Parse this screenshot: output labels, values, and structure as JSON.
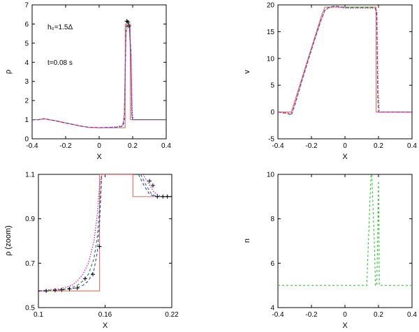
{
  "colors": {
    "exact": "#e8766f",
    "blue": "#3b3bdc",
    "green_dark": "#1a8a2a",
    "magenta": "#e000e0",
    "green_light": "#22cc22",
    "black": "#000000"
  },
  "chart_data": [
    {
      "type": "line",
      "xlabel": "X",
      "ylabel": "ρ",
      "xlim": [
        -0.4,
        0.4
      ],
      "ylim": [
        0,
        7
      ],
      "xticks": [
        "-0.4",
        "-0.2",
        "0",
        "0.2",
        "0.4"
      ],
      "yticks": [
        "0",
        "1",
        "2",
        "3",
        "4",
        "5",
        "6",
        "7"
      ],
      "annotations": [
        "h₀=1.5Δ",
        "t=0.08 s"
      ],
      "series": [
        {
          "style": "exact-red",
          "x": [
            -0.4,
            -0.36,
            -0.34,
            -0.32,
            -0.3,
            -0.26,
            -0.22,
            -0.18,
            -0.14,
            -0.1,
            -0.06,
            0.0,
            0.05,
            0.1,
            0.14,
            0.15,
            0.155,
            0.156,
            0.185,
            0.186,
            0.4
          ],
          "y": [
            1.0,
            1.0,
            1.03,
            1.04,
            1.0,
            0.95,
            0.87,
            0.8,
            0.72,
            0.65,
            0.6,
            0.58,
            0.58,
            0.58,
            0.58,
            0.58,
            0.58,
            6.0,
            6.0,
            1.0,
            1.0
          ]
        },
        {
          "style": "blue-dash",
          "x": [
            -0.4,
            -0.36,
            -0.33,
            -0.3,
            -0.26,
            -0.22,
            -0.18,
            -0.14,
            -0.1,
            -0.06,
            0.0,
            0.1,
            0.14,
            0.15,
            0.16,
            0.17,
            0.18,
            0.19,
            0.195,
            0.2,
            0.4
          ],
          "y": [
            1.0,
            1.0,
            1.05,
            1.0,
            0.94,
            0.86,
            0.79,
            0.72,
            0.65,
            0.6,
            0.58,
            0.6,
            0.65,
            0.9,
            5.6,
            6.0,
            5.9,
            4.5,
            1.2,
            1.0,
            1.0
          ]
        },
        {
          "style": "green-dash",
          "x": [
            -0.4,
            -0.36,
            -0.33,
            -0.3,
            -0.26,
            -0.22,
            -0.18,
            -0.14,
            -0.1,
            -0.06,
            0.0,
            0.1,
            0.14,
            0.15,
            0.16,
            0.17,
            0.18,
            0.19,
            0.196,
            0.2,
            0.4
          ],
          "y": [
            1.0,
            1.0,
            1.05,
            1.0,
            0.94,
            0.86,
            0.79,
            0.72,
            0.65,
            0.6,
            0.58,
            0.6,
            0.66,
            1.1,
            5.8,
            6.2,
            5.9,
            4.2,
            1.1,
            1.0,
            1.0
          ]
        },
        {
          "style": "magenta-dot",
          "x": [
            -0.4,
            -0.36,
            -0.33,
            -0.3,
            -0.26,
            -0.22,
            -0.18,
            -0.14,
            -0.1,
            -0.06,
            0.0,
            0.1,
            0.14,
            0.15,
            0.16,
            0.17,
            0.18,
            0.19,
            0.198,
            0.205,
            0.4
          ],
          "y": [
            1.0,
            1.0,
            1.05,
            1.0,
            0.94,
            0.86,
            0.79,
            0.72,
            0.65,
            0.6,
            0.58,
            0.62,
            0.7,
            1.3,
            5.5,
            5.9,
            5.8,
            4.0,
            1.3,
            1.0,
            1.0
          ]
        }
      ],
      "markers": {
        "x": [
          0.165,
          0.172,
          0.178
        ],
        "y": [
          6.15,
          6.1,
          5.9
        ]
      }
    },
    {
      "type": "line",
      "xlabel": "X",
      "ylabel": "v",
      "xlim": [
        -0.4,
        0.4
      ],
      "ylim": [
        -5,
        20
      ],
      "xticks": [
        "-0.4",
        "-0.2",
        "0",
        "0.2",
        "0.4"
      ],
      "yticks": [
        "-5",
        "0",
        "5",
        "10",
        "15",
        "20"
      ],
      "series": [
        {
          "style": "exact-red",
          "x": [
            -0.4,
            -0.32,
            -0.3,
            -0.26,
            -0.22,
            -0.18,
            -0.14,
            -0.12,
            -0.1,
            0.0,
            0.185,
            0.186,
            0.4
          ],
          "y": [
            0.0,
            0.0,
            2.0,
            6.0,
            10.0,
            14.0,
            18.0,
            19.6,
            19.6,
            19.6,
            19.6,
            0.0,
            0.0
          ]
        },
        {
          "style": "blue-dash",
          "x": [
            -0.4,
            -0.34,
            -0.32,
            -0.3,
            -0.26,
            -0.22,
            -0.18,
            -0.14,
            -0.12,
            -0.1,
            -0.06,
            0.0,
            0.18,
            0.19,
            0.195,
            0.2,
            0.4
          ],
          "y": [
            0.0,
            -0.3,
            -0.6,
            1.2,
            5.5,
            9.6,
            13.6,
            17.4,
            19.0,
            19.5,
            19.8,
            19.5,
            19.5,
            18.0,
            3.0,
            0.0,
            0.0
          ]
        },
        {
          "style": "green-dash",
          "x": [
            -0.4,
            -0.34,
            -0.32,
            -0.3,
            -0.26,
            -0.22,
            -0.18,
            -0.14,
            -0.12,
            -0.1,
            -0.06,
            0.0,
            0.18,
            0.19,
            0.196,
            0.2,
            0.4
          ],
          "y": [
            0.0,
            -0.3,
            -0.6,
            1.2,
            5.5,
            9.6,
            13.6,
            17.4,
            19.0,
            19.5,
            19.8,
            19.5,
            19.5,
            18.5,
            2.5,
            0.0,
            0.0
          ]
        },
        {
          "style": "magenta-dot",
          "x": [
            -0.4,
            -0.34,
            -0.32,
            -0.3,
            -0.26,
            -0.22,
            -0.18,
            -0.14,
            -0.12,
            -0.1,
            -0.06,
            0.0,
            0.18,
            0.19,
            0.198,
            0.205,
            0.4
          ],
          "y": [
            0.0,
            -0.2,
            -0.4,
            1.4,
            5.6,
            9.7,
            13.7,
            17.4,
            18.9,
            19.4,
            19.7,
            19.4,
            19.4,
            18.8,
            4.0,
            0.0,
            0.0
          ]
        }
      ]
    },
    {
      "type": "line",
      "xlabel": "X",
      "ylabel": "ρ (zoom)",
      "xlim": [
        0.1,
        0.22
      ],
      "ylim": [
        0.5,
        1.1
      ],
      "xticks": [
        "0.1",
        "0.16",
        "0.22"
      ],
      "yticks": [
        "0.5",
        "0.7",
        "0.9",
        "1.1"
      ],
      "series": [
        {
          "style": "exact-red",
          "x": [
            0.1,
            0.155,
            0.155,
            0.185,
            0.185,
            0.22
          ],
          "y": [
            0.575,
            0.575,
            1.1,
            1.1,
            1.0,
            1.0
          ]
        },
        {
          "style": "blue-dash",
          "x": [
            0.1,
            0.12,
            0.13,
            0.135,
            0.14,
            0.145,
            0.15,
            0.153,
            0.155,
            0.157
          ],
          "y": [
            0.575,
            0.58,
            0.585,
            0.59,
            0.6,
            0.62,
            0.67,
            0.75,
            0.88,
            1.1
          ]
        },
        {
          "style": "green-dash",
          "x": [
            0.1,
            0.12,
            0.13,
            0.135,
            0.14,
            0.145,
            0.15,
            0.153,
            0.155,
            0.157
          ],
          "y": [
            0.575,
            0.58,
            0.59,
            0.6,
            0.62,
            0.65,
            0.72,
            0.82,
            0.95,
            1.1
          ]
        },
        {
          "style": "magenta-dot",
          "x": [
            0.1,
            0.12,
            0.13,
            0.135,
            0.14,
            0.145,
            0.15,
            0.153,
            0.155,
            0.157
          ],
          "y": [
            0.575,
            0.585,
            0.6,
            0.62,
            0.65,
            0.7,
            0.8,
            0.92,
            1.05,
            1.1
          ]
        },
        {
          "style": "blue-dash",
          "x": [
            0.19,
            0.195,
            0.2,
            0.205,
            0.21,
            0.22
          ],
          "y": [
            1.1,
            1.05,
            1.01,
            1.0,
            1.0,
            1.0
          ]
        },
        {
          "style": "green-dash",
          "x": [
            0.192,
            0.197,
            0.202,
            0.207,
            0.212,
            0.22
          ],
          "y": [
            1.1,
            1.05,
            1.01,
            1.0,
            1.0,
            1.0
          ]
        },
        {
          "style": "magenta-dot",
          "x": [
            0.194,
            0.199,
            0.204,
            0.21,
            0.215,
            0.22
          ],
          "y": [
            1.1,
            1.06,
            1.02,
            1.0,
            1.0,
            1.0
          ]
        }
      ],
      "markers": {
        "x": [
          0.1,
          0.107,
          0.115,
          0.121,
          0.128,
          0.135,
          0.142,
          0.149,
          0.155,
          0.2,
          0.203,
          0.207,
          0.212,
          0.216,
          0.22
        ],
        "y": [
          0.575,
          0.575,
          0.578,
          0.58,
          0.584,
          0.588,
          0.63,
          0.65,
          0.775,
          1.07,
          1.05,
          1.0,
          1.0,
          1.0,
          1.0
        ]
      }
    },
    {
      "type": "line",
      "xlabel": "X",
      "ylabel": "n",
      "xlim": [
        -0.4,
        0.4
      ],
      "ylim": [
        4,
        10
      ],
      "xticks": [
        "-0.4",
        "-0.2",
        "0",
        "0.2",
        "0.4"
      ],
      "yticks": [
        "4",
        "6",
        "8",
        "10"
      ],
      "series": [
        {
          "style": "green-light-dash",
          "x": [
            -0.4,
            0.13,
            0.14,
            0.155,
            0.16,
            0.175,
            0.182,
            0.19,
            0.2,
            0.205,
            0.4
          ],
          "y": [
            5.0,
            5.0,
            7.0,
            10.0,
            10.0,
            7.0,
            5.0,
            5.0,
            9.7,
            5.0,
            5.0
          ]
        }
      ]
    }
  ]
}
